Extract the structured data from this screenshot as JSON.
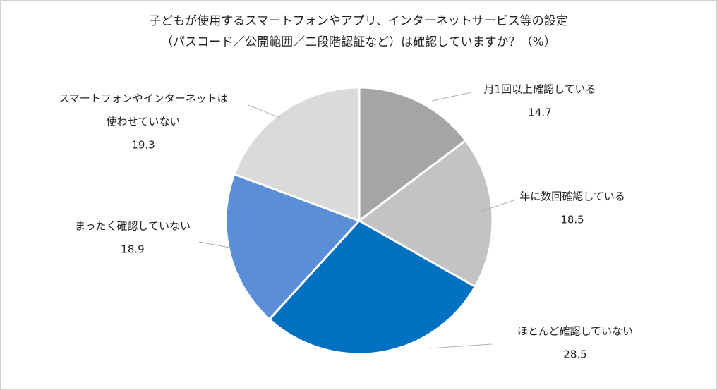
{
  "chart_data": {
    "type": "pie",
    "title": "子どもが使用するスマートフォンやアプリ、インターネットサービス等の設定",
    "subtitle": "（パスコード／公開範囲／二段階認証など）は確認していますか？（%）",
    "slices": [
      {
        "label": "月1回以上確認している",
        "label_lines": [
          "月1回以上確認している"
        ],
        "value": 14.7,
        "display": "14.7",
        "color": "#a5a5a5"
      },
      {
        "label": "年に数回確認している",
        "label_lines": [
          "年に数回確認している"
        ],
        "value": 18.5,
        "display": "18.5",
        "color": "#c3c3c3"
      },
      {
        "label": "ほとんど確認していない",
        "label_lines": [
          "ほとんど確認していない"
        ],
        "value": 28.5,
        "display": "28.5",
        "color": "#0070c0"
      },
      {
        "label": "まったく確認していない",
        "label_lines": [
          "まったく確認していない"
        ],
        "value": 18.9,
        "display": "18.9",
        "color": "#5a8fd8"
      },
      {
        "label": "スマートフォンやインターネットは使わせていない",
        "label_lines": [
          "スマートフォンやインターネットは",
          "使わせていない"
        ],
        "value": 19.3,
        "display": "19.3",
        "color": "#dadada"
      }
    ]
  }
}
